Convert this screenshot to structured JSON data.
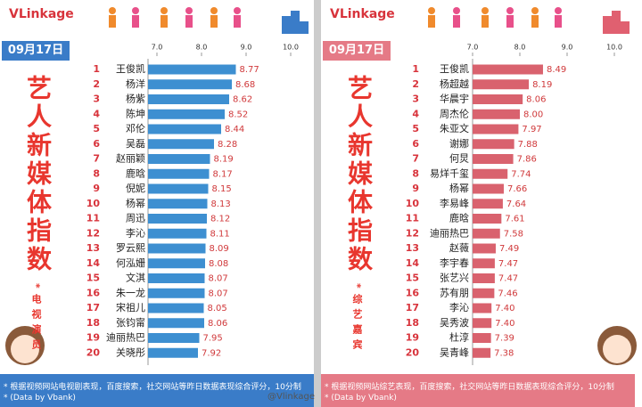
{
  "logo": "VLinkage",
  "watermark": "@Vlinkage",
  "chart_data": [
    {
      "type": "bar",
      "date": "09月17日",
      "title": "艺人新媒体指数",
      "subtitle": "*电视演员",
      "ranks": [
        1,
        2,
        3,
        4,
        5,
        6,
        7,
        8,
        9,
        10,
        11,
        12,
        13,
        14,
        15,
        16,
        17,
        18,
        19,
        20
      ],
      "categories": [
        "王俊凯",
        "杨洋",
        "杨紫",
        "陈坤",
        "邓伦",
        "吴磊",
        "赵丽颖",
        "鹿晗",
        "倪妮",
        "杨幂",
        "周迅",
        "李沁",
        "罗云熙",
        "何泓姗",
        "文淇",
        "朱一龙",
        "宋祖儿",
        "张钧甯",
        "迪丽热巴",
        "关晓彤"
      ],
      "values": [
        8.77,
        8.68,
        8.62,
        8.52,
        8.44,
        8.28,
        8.19,
        8.17,
        8.15,
        8.13,
        8.12,
        8.11,
        8.09,
        8.08,
        8.07,
        8.07,
        8.05,
        8.06,
        7.95,
        7.92
      ],
      "color": "#3d8fd1",
      "label_color": "#d0393b",
      "band_color": "#3a7cc8",
      "xlim": [
        6.8,
        10
      ],
      "xticks": [
        {
          "value": 7,
          "label": "7.0"
        },
        {
          "value": 8,
          "label": "8.0"
        },
        {
          "value": 9,
          "label": "9.0"
        },
        {
          "value": 10,
          "label": "10.0"
        }
      ],
      "note": "* 根据视频网站电视剧表现，百度搜索，社交网站等昨日数据表现综合评分，10分制",
      "source": "* (Data by Vbank)"
    },
    {
      "type": "bar",
      "date": "09月17日",
      "title": "艺人新媒体指数",
      "subtitle": "*综艺嘉宾",
      "ranks": [
        1,
        2,
        3,
        4,
        5,
        6,
        7,
        8,
        9,
        10,
        11,
        12,
        13,
        14,
        15,
        16,
        17,
        18,
        19,
        20
      ],
      "categories": [
        "王俊凯",
        "杨超越",
        "华晨宇",
        "周杰伦",
        "朱亚文",
        "谢娜",
        "何炅",
        "易烊千玺",
        "杨幂",
        "李易峰",
        "鹿晗",
        "迪丽热巴",
        "赵薇",
        "李宇春",
        "张艺兴",
        "苏有朋",
        "李沁",
        "吴秀波",
        "杜淳",
        "吴青峰"
      ],
      "values": [
        8.49,
        8.19,
        8.06,
        8.0,
        7.97,
        7.88,
        7.86,
        7.74,
        7.66,
        7.64,
        7.61,
        7.58,
        7.49,
        7.47,
        7.47,
        7.46,
        7.4,
        7.4,
        7.39,
        7.38
      ],
      "value_labels": [
        "8.49",
        "8.19",
        "8.06",
        "8.00",
        "7.97",
        "7.88",
        "7.86",
        "7.74",
        "7.66",
        "7.64",
        "7.61",
        "7.58",
        "7.49",
        "7.47",
        "7.47",
        "7.46",
        "7.40",
        "7.40",
        "7.39",
        "7.38"
      ],
      "color": "#d9626e",
      "label_color": "#d0393b",
      "band_color": "#e57a86",
      "xlim": [
        7,
        10
      ],
      "xticks": [
        {
          "value": 7,
          "label": "7.0"
        },
        {
          "value": 8,
          "label": "8.0"
        },
        {
          "value": 9,
          "label": "9.0"
        },
        {
          "value": 10,
          "label": "10.0"
        }
      ],
      "note": "* 根据视频网站综艺表现，百度搜索，社交网站等昨日数据表现综合评分，10分制",
      "source": "* (Data by Vbank)"
    }
  ]
}
